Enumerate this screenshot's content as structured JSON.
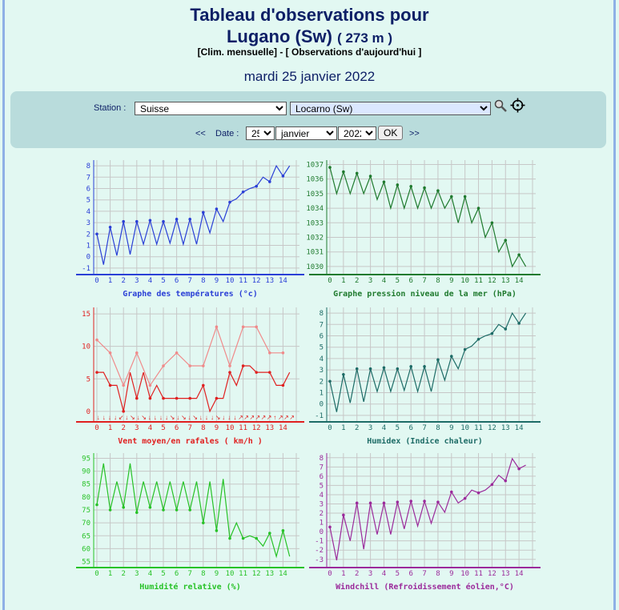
{
  "header": {
    "title_line1": "Tableau d'observations pour",
    "title_line2": "Lugano (Sw)",
    "altitude": "( 273 m )",
    "link_clim": "[Clim. mensuelle]",
    "link_sep": " - ",
    "link_obs": "[ Observations d'aujourd'hui ]",
    "date": "mardi 25 janvier 2022"
  },
  "form": {
    "station_label": "Station :",
    "country": "Suisse",
    "station": "Locarno (Sw)",
    "date_label": "Date :",
    "prev": "<<",
    "next": ">>",
    "day": "25",
    "month": "janvier",
    "year": "2022",
    "ok": "OK"
  },
  "icons": {
    "search": "magnifier-icon",
    "locate": "crosshair-icon"
  },
  "charts": {
    "temperature": {
      "caption": "Graphe des températures (°c)",
      "color": "#2a3fd6",
      "type": "line",
      "x_ticks": [
        "0",
        "1",
        "2",
        "3",
        "4",
        "5",
        "6",
        "7",
        "8",
        "9",
        "10",
        "11",
        "12",
        "13",
        "14"
      ],
      "y_ticks": [
        "-1",
        "0",
        "1",
        "2",
        "3",
        "4",
        "5",
        "6",
        "7",
        "8"
      ],
      "ylim": [
        -1.5,
        8.5
      ],
      "series": [
        {
          "points": [
            [
              0,
              2
            ],
            [
              0.5,
              -0.7
            ],
            [
              1,
              2.6
            ],
            [
              1.5,
              0.1
            ],
            [
              2,
              3.1
            ],
            [
              2.5,
              0.2
            ],
            [
              3,
              3.1
            ],
            [
              3.5,
              1.1
            ],
            [
              4,
              3.2
            ],
            [
              4.5,
              1.1
            ],
            [
              5,
              3.1
            ],
            [
              5.5,
              1.2
            ],
            [
              6,
              3.3
            ],
            [
              6.5,
              1.1
            ],
            [
              7,
              3.3
            ],
            [
              7.5,
              1.1
            ],
            [
              8,
              3.9
            ],
            [
              8.5,
              2.1
            ],
            [
              9,
              4.2
            ],
            [
              9.5,
              3.1
            ],
            [
              10,
              4.8
            ],
            [
              10.5,
              5.1
            ],
            [
              11,
              5.7
            ],
            [
              11.5,
              6
            ],
            [
              12,
              6.2
            ],
            [
              12.5,
              7
            ],
            [
              13,
              6.6
            ],
            [
              13.5,
              8
            ],
            [
              14,
              7.1
            ],
            [
              14.5,
              8
            ]
          ]
        }
      ]
    },
    "pressure": {
      "caption": "Graphe pression niveau de la mer (hPa)",
      "color": "#1f7a2e",
      "type": "line",
      "x_ticks": [
        "0",
        "1",
        "2",
        "3",
        "4",
        "5",
        "6",
        "7",
        "8",
        "9",
        "10",
        "11",
        "12",
        "13",
        "14"
      ],
      "y_ticks": [
        "1030",
        "1031",
        "1032",
        "1033",
        "1034",
        "1035",
        "1036",
        "1037"
      ],
      "ylim": [
        1029.5,
        1037.3
      ],
      "series": [
        {
          "points": [
            [
              0,
              1036.8
            ],
            [
              0.5,
              1035
            ],
            [
              1,
              1036.5
            ],
            [
              1.5,
              1035
            ],
            [
              2,
              1036.4
            ],
            [
              2.5,
              1035
            ],
            [
              3,
              1036.2
            ],
            [
              3.5,
              1034.6
            ],
            [
              4,
              1035.8
            ],
            [
              4.5,
              1034
            ],
            [
              5,
              1035.6
            ],
            [
              5.5,
              1034
            ],
            [
              6,
              1035.5
            ],
            [
              6.5,
              1034
            ],
            [
              7,
              1035.4
            ],
            [
              7.5,
              1034
            ],
            [
              8,
              1035.2
            ],
            [
              8.5,
              1034
            ],
            [
              9,
              1034.8
            ],
            [
              9.5,
              1033
            ],
            [
              10,
              1034.8
            ],
            [
              10.5,
              1033
            ],
            [
              11,
              1034
            ],
            [
              11.5,
              1032
            ],
            [
              12,
              1033
            ],
            [
              12.5,
              1031
            ],
            [
              13,
              1031.8
            ],
            [
              13.5,
              1030
            ],
            [
              14,
              1030.8
            ],
            [
              14.5,
              1030
            ]
          ]
        }
      ]
    },
    "wind": {
      "caption": "Vent moyen/en rafales ( km/h )",
      "color": "#e02020",
      "gust_color": "#f08a8a",
      "type": "line",
      "x_ticks": [
        "0",
        "1",
        "2",
        "3",
        "4",
        "5",
        "6",
        "7",
        "8",
        "9",
        "10",
        "11",
        "12",
        "13",
        "14"
      ],
      "y_ticks": [
        "0",
        "5",
        "10",
        "15"
      ],
      "ylim": [
        -1.5,
        16
      ],
      "directions": "↓↓↓↓↙↓↘↓↘↓↓↓↓↘↓↘↓↘↓↓↓↘↓↓↓↗↗↗↗↗↗↑↗↗↗",
      "series": [
        {
          "points": [
            [
              0,
              6
            ],
            [
              0.5,
              6
            ],
            [
              1,
              4
            ],
            [
              1.5,
              4
            ],
            [
              2,
              0
            ],
            [
              2.5,
              6
            ],
            [
              3,
              2
            ],
            [
              3.5,
              6
            ],
            [
              4,
              2
            ],
            [
              4.5,
              4
            ],
            [
              5,
              2
            ],
            [
              5.5,
              2
            ],
            [
              6,
              2
            ],
            [
              6.5,
              2
            ],
            [
              7,
              2
            ],
            [
              7.5,
              2
            ],
            [
              8,
              4
            ],
            [
              8.5,
              0
            ],
            [
              9,
              2
            ],
            [
              9.5,
              2
            ],
            [
              10,
              6
            ],
            [
              10.5,
              4
            ],
            [
              11,
              7
            ],
            [
              11.5,
              7
            ],
            [
              12,
              6
            ],
            [
              12.5,
              6
            ],
            [
              13,
              6
            ],
            [
              13.5,
              4
            ],
            [
              14,
              4
            ],
            [
              14.5,
              6
            ]
          ]
        },
        {
          "points": [
            [
              0,
              11
            ],
            [
              1,
              9
            ],
            [
              2,
              4
            ],
            [
              3,
              9
            ],
            [
              4,
              4
            ],
            [
              5,
              7
            ],
            [
              6,
              9
            ],
            [
              7,
              7
            ],
            [
              8,
              7
            ],
            [
              9,
              13
            ],
            [
              10,
              7
            ],
            [
              11,
              13
            ],
            [
              12,
              13
            ],
            [
              13,
              9
            ],
            [
              14,
              9
            ]
          ]
        }
      ]
    },
    "humidex": {
      "caption": "Humidex (Indice chaleur)",
      "color": "#1d6b66",
      "type": "line",
      "x_ticks": [
        "0",
        "1",
        "2",
        "3",
        "4",
        "5",
        "6",
        "7",
        "8",
        "9",
        "10",
        "11",
        "12",
        "13",
        "14"
      ],
      "y_ticks": [
        "-1",
        "0",
        "1",
        "2",
        "3",
        "4",
        "5",
        "6",
        "7",
        "8"
      ],
      "ylim": [
        -1.5,
        8.5
      ],
      "series": [
        {
          "points": [
            [
              0,
              2
            ],
            [
              0.5,
              -0.7
            ],
            [
              1,
              2.6
            ],
            [
              1.5,
              0.1
            ],
            [
              2,
              3.1
            ],
            [
              2.5,
              0.2
            ],
            [
              3,
              3.1
            ],
            [
              3.5,
              1.1
            ],
            [
              4,
              3.2
            ],
            [
              4.5,
              1.1
            ],
            [
              5,
              3.1
            ],
            [
              5.5,
              1.2
            ],
            [
              6,
              3.3
            ],
            [
              6.5,
              1.1
            ],
            [
              7,
              3.3
            ],
            [
              7.5,
              1.1
            ],
            [
              8,
              3.9
            ],
            [
              8.5,
              2.1
            ],
            [
              9,
              4.2
            ],
            [
              9.5,
              3.1
            ],
            [
              10,
              4.8
            ],
            [
              10.5,
              5.1
            ],
            [
              11,
              5.7
            ],
            [
              11.5,
              6
            ],
            [
              12,
              6.2
            ],
            [
              12.5,
              7
            ],
            [
              13,
              6.6
            ],
            [
              13.5,
              8
            ],
            [
              14,
              7.1
            ],
            [
              14.5,
              8
            ]
          ]
        }
      ]
    },
    "humidity": {
      "caption": "Humidité relative (%)",
      "color": "#27c227",
      "type": "line",
      "x_ticks": [
        "0",
        "1",
        "2",
        "3",
        "4",
        "5",
        "6",
        "7",
        "8",
        "9",
        "10",
        "11",
        "12",
        "13",
        "14"
      ],
      "y_ticks": [
        "55",
        "60",
        "65",
        "70",
        "75",
        "80",
        "85",
        "90",
        "95"
      ],
      "ylim": [
        53,
        97
      ],
      "series": [
        {
          "points": [
            [
              0,
              77
            ],
            [
              0.5,
              93
            ],
            [
              1,
              75
            ],
            [
              1.5,
              86
            ],
            [
              2,
              76
            ],
            [
              2.5,
              93
            ],
            [
              3,
              74
            ],
            [
              3.5,
              86
            ],
            [
              4,
              76
            ],
            [
              4.5,
              86
            ],
            [
              5,
              75
            ],
            [
              5.5,
              86
            ],
            [
              6,
              75
            ],
            [
              6.5,
              86
            ],
            [
              7,
              75
            ],
            [
              7.5,
              86
            ],
            [
              8,
              70
            ],
            [
              8.5,
              86
            ],
            [
              9,
              67
            ],
            [
              9.5,
              87
            ],
            [
              10,
              64
            ],
            [
              10.5,
              70
            ],
            [
              11,
              64
            ],
            [
              11.5,
              65
            ],
            [
              12,
              64
            ],
            [
              12.5,
              61
            ],
            [
              13,
              66
            ],
            [
              13.5,
              57
            ],
            [
              14,
              67
            ],
            [
              14.5,
              57
            ]
          ]
        }
      ]
    },
    "windchill": {
      "caption": "Windchill (Refroidissement éolien,°C)",
      "color": "#9b2a9b",
      "type": "line",
      "x_ticks": [
        "0",
        "1",
        "2",
        "3",
        "4",
        "5",
        "6",
        "7",
        "8",
        "9",
        "10",
        "11",
        "12",
        "13",
        "14"
      ],
      "y_ticks": [
        "-3",
        "-2",
        "-1",
        "0",
        "1",
        "2",
        "3",
        "4",
        "5",
        "6",
        "7",
        "8"
      ],
      "ylim": [
        -3.8,
        8.5
      ],
      "series": [
        {
          "points": [
            [
              0,
              0.5
            ],
            [
              0.5,
              -3.1
            ],
            [
              1,
              1.8
            ],
            [
              1.5,
              -1
            ],
            [
              2,
              3.1
            ],
            [
              2.5,
              -1.9
            ],
            [
              3,
              3.1
            ],
            [
              3.5,
              -0.3
            ],
            [
              4,
              3.1
            ],
            [
              4.5,
              -0.3
            ],
            [
              5,
              3.2
            ],
            [
              5.5,
              0.3
            ],
            [
              6,
              3.3
            ],
            [
              6.5,
              0.6
            ],
            [
              7,
              3.3
            ],
            [
              7.5,
              0.9
            ],
            [
              8,
              3.2
            ],
            [
              8.5,
              2.1
            ],
            [
              9,
              4.3
            ],
            [
              9.5,
              3.1
            ],
            [
              10,
              3.6
            ],
            [
              10.5,
              4.5
            ],
            [
              11,
              4.2
            ],
            [
              11.5,
              4.5
            ],
            [
              12,
              5.1
            ],
            [
              12.5,
              6.1
            ],
            [
              13,
              5.5
            ],
            [
              13.5,
              7.9
            ],
            [
              14,
              6.8
            ],
            [
              14.5,
              7.2
            ]
          ]
        }
      ]
    }
  }
}
